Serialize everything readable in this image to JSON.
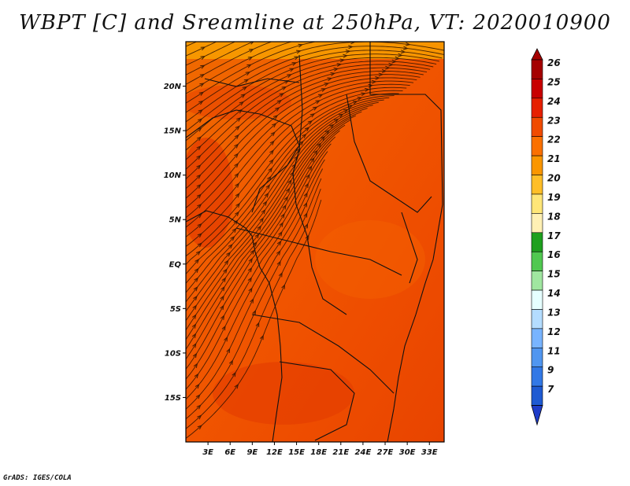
{
  "title": "WBPT [C] and Sreamline at 250hPa, VT: 2020010900",
  "credit": "GrADS: IGES/COLA",
  "map": {
    "lat_labels": [
      "20N",
      "15N",
      "10N",
      "5N",
      "EQ",
      "5S",
      "10S",
      "15S"
    ],
    "lon_labels": [
      "3E",
      "6E",
      "9E",
      "12E",
      "15E",
      "18E",
      "21E",
      "24E",
      "27E",
      "30E",
      "33E"
    ],
    "lon_range": [
      0,
      35
    ],
    "lat_range": [
      -20,
      25
    ]
  },
  "colorbar": {
    "labels": [
      "26",
      "25",
      "24",
      "23",
      "22",
      "21",
      "20",
      "19",
      "18",
      "17",
      "16",
      "15",
      "14",
      "13",
      "12",
      "11",
      "9",
      "7"
    ],
    "colors": [
      "#a50000",
      "#c80000",
      "#e62000",
      "#f04b00",
      "#fa7000",
      "#fa9600",
      "#ffbe28",
      "#ffe678",
      "#fff0b4",
      "#1ea01e",
      "#50c850",
      "#a0e6a0",
      "#e6ffff",
      "#b4dcff",
      "#78b4ff",
      "#5096f0",
      "#3278e6",
      "#1e5ad2",
      "#1e3cc8"
    ]
  }
}
